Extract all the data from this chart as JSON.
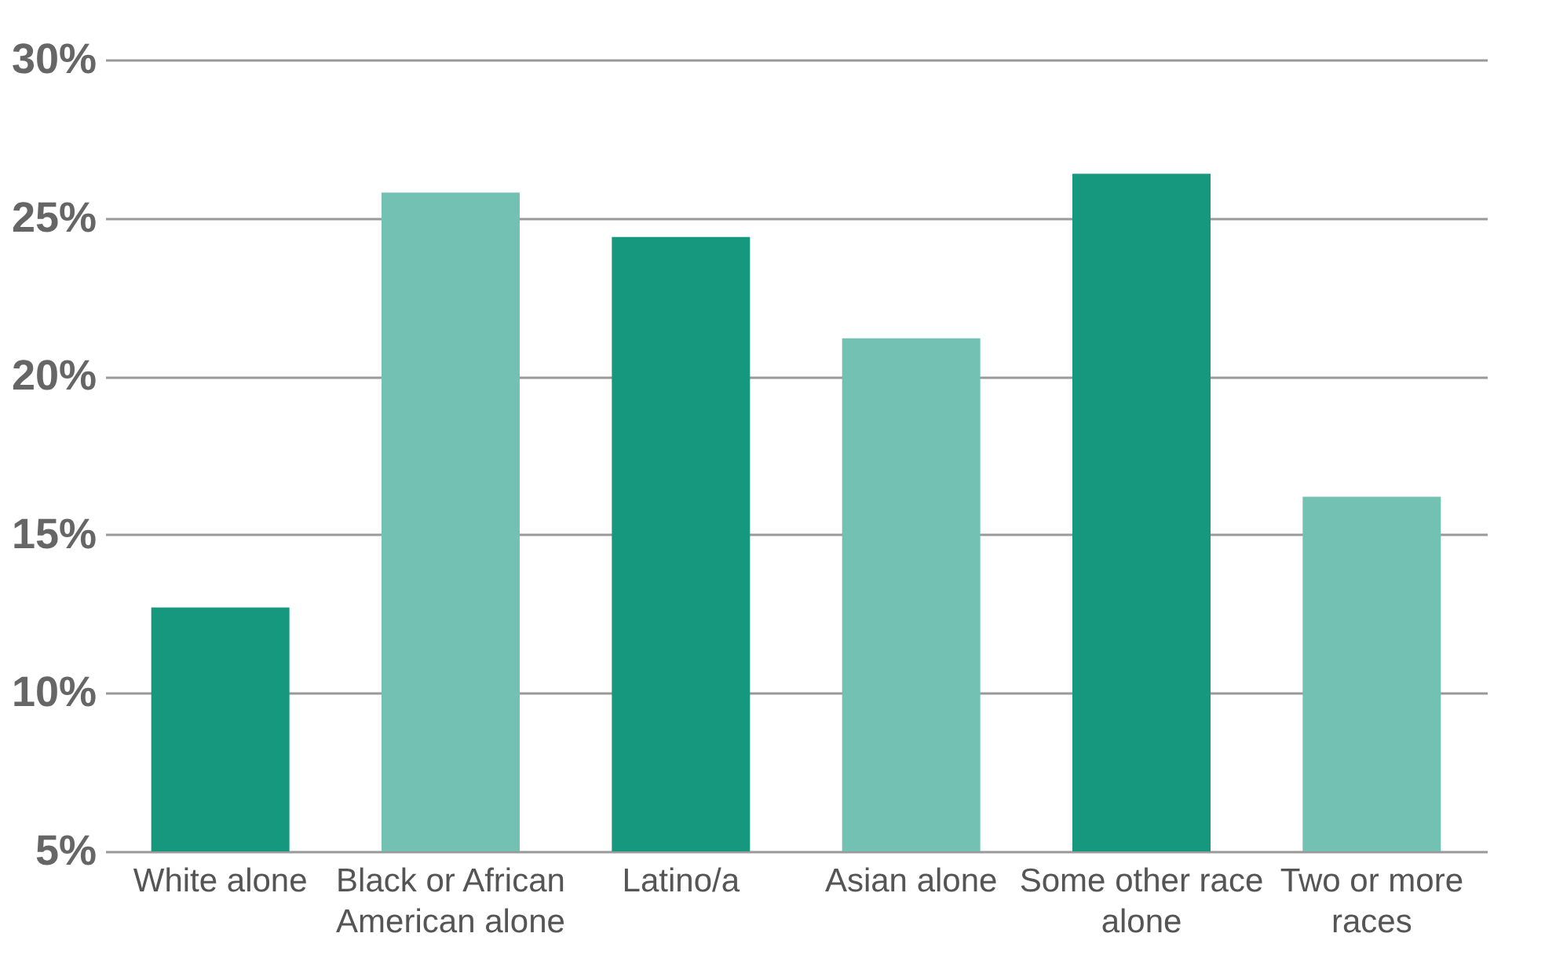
{
  "chart_data": {
    "type": "bar",
    "categories": [
      "White alone",
      "Black or African American alone",
      "Latino/a",
      "Asian alone",
      "Some other race alone",
      "Two or more races"
    ],
    "values": [
      12.7,
      25.8,
      24.4,
      21.2,
      26.4,
      16.2
    ],
    "colors": [
      "#16987f",
      "#72c1b3",
      "#16987f",
      "#72c1b3",
      "#16987f",
      "#72c1b3"
    ],
    "ylim": [
      5,
      30
    ],
    "yticks": [
      {
        "value": 5,
        "label": "5%"
      },
      {
        "value": 10,
        "label": "10%"
      },
      {
        "value": 15,
        "label": "15%"
      },
      {
        "value": 20,
        "label": "20%"
      },
      {
        "value": 25,
        "label": "25%"
      },
      {
        "value": 30,
        "label": "30%"
      }
    ],
    "grid": "y"
  }
}
